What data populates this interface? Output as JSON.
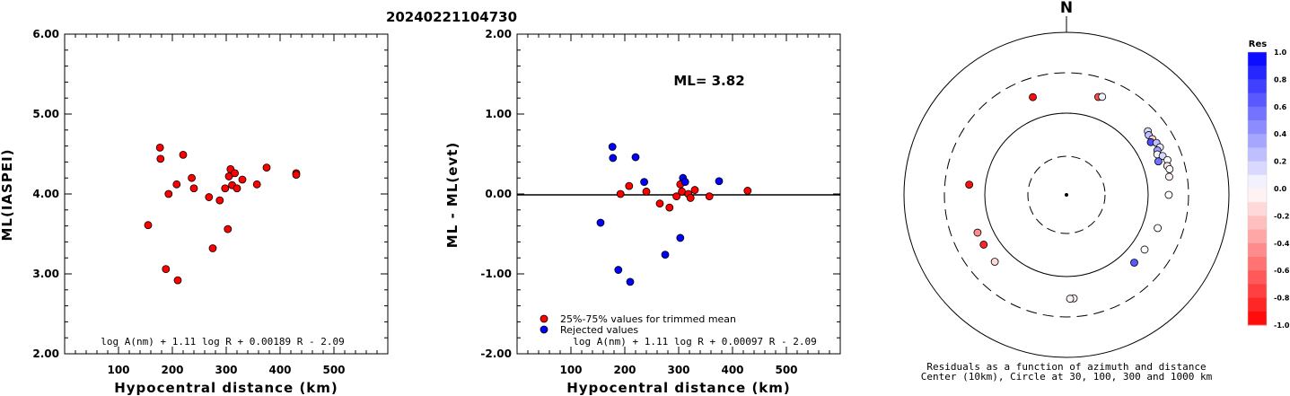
{
  "colors": {
    "red_point": "#ff0000",
    "blue_point": "#0000ff",
    "axis": "#000000"
  },
  "chart_data": [
    {
      "type": "scatter",
      "title": "20240221104730",
      "xlabel": "Hypocentral distance (km)",
      "ylabel": "ML(IASPEI)",
      "xlim": [
        0,
        600
      ],
      "ylim": [
        2.0,
        6.0
      ],
      "xticks": [
        "100",
        "200",
        "300",
        "400",
        "500"
      ],
      "yticks": [
        "2.00",
        "3.00",
        "4.00",
        "5.00",
        "6.00"
      ],
      "formula": "log A(nm) + 1.11 log R + 0.00189 R - 2.09",
      "points": [
        [
          155,
          3.61
        ],
        [
          177,
          4.58
        ],
        [
          178,
          4.44
        ],
        [
          188,
          3.06
        ],
        [
          193,
          4.0
        ],
        [
          208,
          4.12
        ],
        [
          210,
          2.92
        ],
        [
          220,
          4.49
        ],
        [
          236,
          4.2
        ],
        [
          240,
          4.07
        ],
        [
          268,
          3.96
        ],
        [
          275,
          3.32
        ],
        [
          288,
          3.92
        ],
        [
          298,
          4.07
        ],
        [
          303,
          3.56
        ],
        [
          305,
          4.22
        ],
        [
          308,
          4.31
        ],
        [
          311,
          4.11
        ],
        [
          316,
          4.26
        ],
        [
          320,
          4.07
        ],
        [
          330,
          4.18
        ],
        [
          357,
          4.12
        ],
        [
          375,
          4.33
        ],
        [
          430,
          4.26
        ],
        [
          430,
          4.24
        ]
      ]
    },
    {
      "type": "scatter",
      "xlabel": "Hypocentral distance (km)",
      "ylabel": "ML - ML(evt)",
      "xlim": [
        0,
        600
      ],
      "ylim": [
        -2.0,
        2.0
      ],
      "xticks": [
        "100",
        "200",
        "300",
        "400",
        "500"
      ],
      "yticks": [
        "-2.00",
        "-1.00",
        "0.00",
        "1.00",
        "2.00"
      ],
      "annotation": "ML= 3.82",
      "formula": "log A(nm) + 1.11 log R + 0.00097 R - 2.09",
      "legend": [
        {
          "label": "25%-75% values for trimmed mean",
          "color": "#ff0000"
        },
        {
          "label": "Rejected values",
          "color": "#0000ff"
        }
      ],
      "series": [
        {
          "name": "25%-75% values for trimmed mean",
          "color": "#ff0000",
          "points": [
            [
              192,
              0.0
            ],
            [
              208,
              0.1
            ],
            [
              240,
              0.03
            ],
            [
              265,
              -0.12
            ],
            [
              283,
              -0.17
            ],
            [
              296,
              -0.03
            ],
            [
              303,
              0.12
            ],
            [
              306,
              0.03
            ],
            [
              318,
              0.0
            ],
            [
              322,
              -0.05
            ],
            [
              330,
              0.05
            ],
            [
              357,
              -0.03
            ],
            [
              428,
              0.04
            ]
          ]
        },
        {
          "name": "Rejected values",
          "color": "#0000ff",
          "points": [
            [
              155,
              -0.36
            ],
            [
              177,
              0.59
            ],
            [
              178,
              0.45
            ],
            [
              188,
              -0.95
            ],
            [
              210,
              -1.1
            ],
            [
              220,
              0.46
            ],
            [
              236,
              0.15
            ],
            [
              275,
              -0.76
            ],
            [
              303,
              -0.55
            ],
            [
              308,
              0.2
            ],
            [
              312,
              0.15
            ],
            [
              375,
              0.16
            ]
          ]
        }
      ]
    },
    {
      "type": "scatter",
      "subtype": "polar",
      "north_label": "N",
      "caption_line1": "Residuals as a function of azimuth and distance",
      "caption_line2": "Center (10km), Circle at 30, 100, 300 and 1000 km",
      "rings_km": [
        30,
        100,
        300,
        1000
      ],
      "colorbar": {
        "title": "Res",
        "range": [
          -1.0,
          1.0
        ],
        "ticks": [
          "1.0",
          "0.8",
          "0.6",
          "0.4",
          "0.2",
          "0.0",
          "-0.2",
          "-0.4",
          "-0.6",
          "-0.8",
          "-1.0"
        ]
      },
      "points": [
        {
          "az": 341,
          "dist": 180,
          "res": -0.95
        },
        {
          "az": 18,
          "dist": 178,
          "res": -0.7
        },
        {
          "az": 20,
          "dist": 185,
          "res": 0.05
        },
        {
          "az": 52,
          "dist": 180,
          "res": 0.15
        },
        {
          "az": 54,
          "dist": 172,
          "res": 0.25
        },
        {
          "az": 57,
          "dist": 176,
          "res": -0.2
        },
        {
          "az": 58,
          "dist": 162,
          "res": 0.7
        },
        {
          "az": 60,
          "dist": 183,
          "res": 0.25
        },
        {
          "az": 63,
          "dist": 188,
          "res": 0.1
        },
        {
          "az": 64,
          "dist": 170,
          "res": 0.35
        },
        {
          "az": 66,
          "dist": 162,
          "res": 0.05
        },
        {
          "az": 68,
          "dist": 182,
          "res": 0.15
        },
        {
          "az": 70,
          "dist": 155,
          "res": 0.55
        },
        {
          "az": 71,
          "dist": 198,
          "res": 0.0
        },
        {
          "az": 74,
          "dist": 188,
          "res": -0.1
        },
        {
          "az": 76,
          "dist": 195,
          "res": 0.0
        },
        {
          "az": 80,
          "dist": 185,
          "res": -0.05
        },
        {
          "az": 90,
          "dist": 175,
          "res": 0.0
        },
        {
          "az": 110,
          "dist": 152,
          "res": 0.0
        },
        {
          "az": 125,
          "dist": 145,
          "res": 0.0
        },
        {
          "az": 135,
          "dist": 147,
          "res": 0.65
        },
        {
          "az": 176,
          "dist": 182,
          "res": -0.05
        },
        {
          "az": 178,
          "dist": 183,
          "res": -0.05
        },
        {
          "az": 227,
          "dist": 156,
          "res": -0.15
        },
        {
          "az": 239,
          "dist": 150,
          "res": -0.85
        },
        {
          "az": 247,
          "dist": 150,
          "res": -0.45
        },
        {
          "az": 276,
          "dist": 155,
          "res": -0.95
        }
      ]
    }
  ]
}
